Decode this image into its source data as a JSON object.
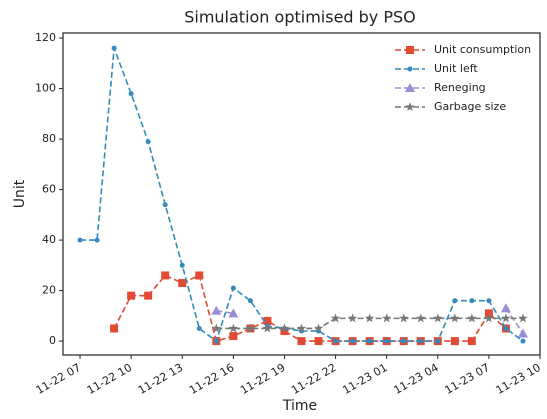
{
  "chart_data": {
    "type": "line",
    "title": "Simulation optimised by PSO",
    "xlabel": "Time",
    "ylabel": "Unit",
    "x": [
      "11-22 07",
      "11-22 08",
      "11-22 09",
      "11-22 10",
      "11-22 11",
      "11-22 12",
      "11-22 13",
      "11-22 14",
      "11-22 15",
      "11-22 16",
      "11-22 17",
      "11-22 18",
      "11-22 19",
      "11-22 20",
      "11-22 21",
      "11-22 22",
      "11-22 23",
      "11-23 00",
      "11-23 01",
      "11-23 02",
      "11-23 03",
      "11-23 04",
      "11-23 05",
      "11-23 06",
      "11-23 07",
      "11-23 08",
      "11-23 09"
    ],
    "series": [
      {
        "name": "Unit consumption",
        "color": "#e24a33",
        "marker": "square",
        "values": [
          null,
          null,
          5,
          18,
          18,
          26,
          23,
          26,
          0,
          2,
          5,
          8,
          4,
          0,
          0,
          0,
          0,
          0,
          0,
          0,
          0,
          0,
          0,
          0,
          11,
          5,
          null
        ]
      },
      {
        "name": "Unit left",
        "color": "#348abd",
        "marker": "circle",
        "values": [
          40,
          40,
          116,
          98,
          79,
          54,
          30,
          5,
          0,
          21,
          16,
          6,
          5,
          4,
          4,
          0,
          0,
          0,
          0,
          0,
          0,
          0,
          16,
          16,
          16,
          5,
          0
        ]
      },
      {
        "name": "Reneging",
        "color": "#988ed5",
        "marker": "triangle",
        "values": [
          null,
          null,
          null,
          null,
          null,
          null,
          null,
          null,
          12,
          11,
          null,
          null,
          null,
          null,
          null,
          null,
          null,
          null,
          null,
          null,
          null,
          null,
          null,
          null,
          null,
          13,
          3
        ]
      },
      {
        "name": "Garbage size",
        "color": "#777777",
        "marker": "star",
        "values": [
          null,
          null,
          null,
          null,
          null,
          null,
          null,
          null,
          5,
          5,
          5,
          5,
          5,
          5,
          5,
          9,
          9,
          9,
          9,
          9,
          9,
          9,
          9,
          9,
          9,
          9,
          9
        ]
      }
    ],
    "xlim": [
      "11-22 06",
      "11-23 10"
    ],
    "xticks": [
      "11-22 07",
      "11-22 10",
      "11-22 13",
      "11-22 16",
      "11-22 19",
      "11-22 22",
      "11-23 01",
      "11-23 04",
      "11-23 07",
      "11-23 10"
    ],
    "ylim": [
      -5.5,
      122
    ],
    "yticks": [
      0,
      20,
      40,
      60,
      80,
      100,
      120
    ],
    "legend": "upper right",
    "grid": false
  }
}
